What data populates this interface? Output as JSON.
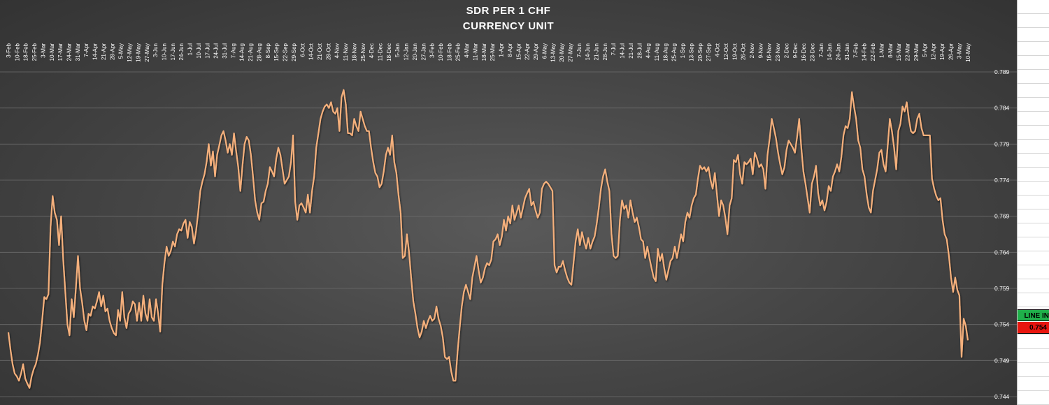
{
  "chart_data": {
    "type": "line",
    "title": "SDR PER 1 CHF",
    "subtitle": "CURRENCY UNIT",
    "x_tick_labels": [
      "3-Feb",
      "10-Feb",
      "18-Feb",
      "25-Feb",
      "3-Mar",
      "10-Mar",
      "17-Mar",
      "24-Mar",
      "31-Mar",
      "7-Apr",
      "14-Apr",
      "21-Apr",
      "28-Apr",
      "5-May",
      "12-May",
      "19-May",
      "27-May",
      "3-Jun",
      "10-Jun",
      "17-Jun",
      "24-Jun",
      "1-Jul",
      "10-Jul",
      "17-Jul",
      "24-Jul",
      "31-Jul",
      "7-Aug",
      "14-Aug",
      "21-Aug",
      "28-Aug",
      "8-Sep",
      "15-Sep",
      "22-Sep",
      "29-Sep",
      "6-Oct",
      "14-Oct",
      "21-Oct",
      "28-Oct",
      "4-Nov",
      "11-Nov",
      "18-Nov",
      "25-Nov",
      "4-Dec",
      "11-Dec",
      "18-Dec",
      "5-Jan",
      "12-Jan",
      "20-Jan",
      "27-Jan",
      "3-Feb",
      "10-Feb",
      "18-Feb",
      "25-Feb",
      "4-Mar",
      "11-Mar",
      "18-Mar",
      "25-Mar",
      "1-Apr",
      "8-Apr",
      "15-Apr",
      "22-Apr",
      "29-Apr",
      "6-May",
      "13-May",
      "20-May",
      "27-May",
      "7-Jun",
      "14-Jun",
      "21-Jun",
      "28-Jun",
      "7-Jul",
      "14-Jul",
      "21-Jul",
      "28-Jul",
      "4-Aug",
      "11-Aug",
      "18-Aug",
      "25-Aug",
      "1-Sep",
      "13-Sep",
      "20-Sep",
      "27-Sep",
      "4-Oct",
      "12-Oct",
      "19-Oct",
      "26-Oct",
      "2-Nov",
      "9-Nov",
      "16-Nov",
      "23-Nov",
      "2-Dec",
      "9-Dec",
      "16-Dec",
      "23-Dec",
      "7-Jan",
      "14-Jan",
      "24-Jan",
      "31-Jan",
      "7-Feb",
      "14-Feb",
      "22-Feb",
      "1-Mar",
      "8-Mar",
      "15-Mar",
      "22-Mar",
      "29-Mar",
      "5-Apr",
      "12-Apr",
      "19-Apr",
      "26-Apr",
      "3-May",
      "10-May"
    ],
    "y_ticks": [
      0.744,
      0.749,
      0.754,
      0.759,
      0.764,
      0.769,
      0.774,
      0.779,
      0.784,
      0.789
    ],
    "ylim": [
      0.744,
      0.79
    ],
    "grid": true,
    "series_color": "#f5b07c",
    "series": [
      {
        "values": [
          0.7529,
          0.7505,
          0.7485,
          0.7472,
          0.7468,
          0.7462,
          0.7472,
          0.7485,
          0.7465,
          0.7458,
          0.7452,
          0.7468,
          0.7478,
          0.7485,
          0.7498,
          0.7515,
          0.7545,
          0.7578,
          0.7575,
          0.7582,
          0.7675,
          0.7718,
          0.7695,
          0.7685,
          0.765,
          0.769,
          0.763,
          0.7585,
          0.754,
          0.7525,
          0.7575,
          0.755,
          0.759,
          0.7635,
          0.759,
          0.757,
          0.7545,
          0.7532,
          0.7555,
          0.7552,
          0.7565,
          0.7562,
          0.7572,
          0.7585,
          0.7565,
          0.758,
          0.7558,
          0.7562,
          0.7545,
          0.7535,
          0.7528,
          0.7525,
          0.756,
          0.7545,
          0.7585,
          0.755,
          0.7535,
          0.7555,
          0.756,
          0.7572,
          0.7568,
          0.7545,
          0.757,
          0.7545,
          0.758,
          0.7555,
          0.7545,
          0.7575,
          0.755,
          0.7545,
          0.7575,
          0.7555,
          0.753,
          0.7595,
          0.7625,
          0.7648,
          0.7635,
          0.7642,
          0.7655,
          0.7648,
          0.7665,
          0.7672,
          0.767,
          0.768,
          0.7685,
          0.766,
          0.7682,
          0.7675,
          0.7652,
          0.767,
          0.7695,
          0.7725,
          0.7738,
          0.7748,
          0.7765,
          0.779,
          0.776,
          0.778,
          0.7745,
          0.7775,
          0.7788,
          0.7802,
          0.7808,
          0.7795,
          0.7778,
          0.779,
          0.7775,
          0.7805,
          0.778,
          0.7758,
          0.7725,
          0.776,
          0.779,
          0.78,
          0.7795,
          0.7775,
          0.7745,
          0.7712,
          0.7695,
          0.7685,
          0.7708,
          0.771,
          0.7725,
          0.7735,
          0.7758,
          0.7752,
          0.7745,
          0.777,
          0.7785,
          0.7775,
          0.7755,
          0.7735,
          0.774,
          0.7745,
          0.7765,
          0.7802,
          0.771,
          0.7685,
          0.7705,
          0.7708,
          0.7702,
          0.7695,
          0.772,
          0.7695,
          0.7725,
          0.7745,
          0.7785,
          0.7805,
          0.7825,
          0.7835,
          0.7842,
          0.7845,
          0.784,
          0.7848,
          0.7835,
          0.7832,
          0.784,
          0.7808,
          0.7855,
          0.7865,
          0.7845,
          0.7805,
          0.7805,
          0.7802,
          0.7825,
          0.7815,
          0.7808,
          0.7835,
          0.7825,
          0.7815,
          0.7808,
          0.7808,
          0.7785,
          0.7765,
          0.775,
          0.7745,
          0.773,
          0.7735,
          0.7752,
          0.7775,
          0.7785,
          0.7775,
          0.7802,
          0.7765,
          0.775,
          0.772,
          0.7695,
          0.7632,
          0.7635,
          0.7665,
          0.764,
          0.7605,
          0.7572,
          0.7555,
          0.7535,
          0.7522,
          0.753,
          0.7545,
          0.7535,
          0.7545,
          0.7552,
          0.7545,
          0.7548,
          0.7565,
          0.7548,
          0.7538,
          0.7522,
          0.7495,
          0.7492,
          0.7495,
          0.7475,
          0.7462,
          0.7462,
          0.7502,
          0.7535,
          0.7565,
          0.7585,
          0.7595,
          0.7585,
          0.7575,
          0.7605,
          0.762,
          0.7635,
          0.7615,
          0.7598,
          0.7605,
          0.7618,
          0.7625,
          0.7622,
          0.763,
          0.7655,
          0.7658,
          0.7665,
          0.765,
          0.7662,
          0.7685,
          0.767,
          0.769,
          0.768,
          0.7705,
          0.7685,
          0.7695,
          0.7705,
          0.7688,
          0.7702,
          0.7715,
          0.7722,
          0.7728,
          0.7705,
          0.771,
          0.7698,
          0.7688,
          0.7695,
          0.7728,
          0.7735,
          0.7738,
          0.7735,
          0.773,
          0.7725,
          0.7622,
          0.7612,
          0.762,
          0.762,
          0.7628,
          0.7615,
          0.7605,
          0.7598,
          0.7595,
          0.7625,
          0.7655,
          0.7672,
          0.765,
          0.7668,
          0.7655,
          0.7645,
          0.766,
          0.7645,
          0.7655,
          0.7662,
          0.768,
          0.7702,
          0.7728,
          0.7745,
          0.7755,
          0.7738,
          0.7725,
          0.7665,
          0.7635,
          0.7632,
          0.7635,
          0.7685,
          0.7712,
          0.77,
          0.7705,
          0.7688,
          0.7712,
          0.7695,
          0.7682,
          0.7688,
          0.7675,
          0.7658,
          0.7655,
          0.7632,
          0.7648,
          0.7632,
          0.7618,
          0.7605,
          0.76,
          0.7645,
          0.7628,
          0.7638,
          0.7618,
          0.7602,
          0.7615,
          0.7628,
          0.7632,
          0.7648,
          0.7632,
          0.7648,
          0.7665,
          0.7655,
          0.7682,
          0.7695,
          0.7688,
          0.7705,
          0.7715,
          0.772,
          0.7742,
          0.776,
          0.7755,
          0.7758,
          0.7752,
          0.7758,
          0.774,
          0.7728,
          0.775,
          0.772,
          0.769,
          0.7712,
          0.7705,
          0.7688,
          0.7665,
          0.7705,
          0.7715,
          0.7768,
          0.7765,
          0.7775,
          0.7748,
          0.7735,
          0.7765,
          0.7762,
          0.7765,
          0.777,
          0.7748,
          0.7778,
          0.777,
          0.7758,
          0.7762,
          0.7755,
          0.7728,
          0.7775,
          0.7798,
          0.7825,
          0.7812,
          0.7798,
          0.7778,
          0.7762,
          0.7748,
          0.7758,
          0.7782,
          0.7795,
          0.779,
          0.7785,
          0.7778,
          0.78,
          0.7825,
          0.7785,
          0.7752,
          0.7735,
          0.7715,
          0.7695,
          0.7735,
          0.7745,
          0.776,
          0.7722,
          0.7705,
          0.7712,
          0.7698,
          0.771,
          0.7732,
          0.7725,
          0.7745,
          0.7752,
          0.7762,
          0.7752,
          0.7772,
          0.7802,
          0.7815,
          0.7812,
          0.7825,
          0.7862,
          0.7842,
          0.7825,
          0.7795,
          0.7785,
          0.7755,
          0.7745,
          0.772,
          0.7702,
          0.7695,
          0.7725,
          0.774,
          0.7755,
          0.7778,
          0.7782,
          0.7762,
          0.7752,
          0.7788,
          0.7825,
          0.7808,
          0.7785,
          0.7755,
          0.7808,
          0.7818,
          0.7842,
          0.7835,
          0.7848,
          0.7825,
          0.7808,
          0.7805,
          0.7808,
          0.7825,
          0.7832,
          0.7812,
          0.7802,
          0.7802,
          0.7802,
          0.7802,
          0.7742,
          0.7728,
          0.7718,
          0.7712,
          0.7715,
          0.7685,
          0.7665,
          0.7658,
          0.7635,
          0.7605,
          0.7585,
          0.7605,
          0.7588,
          0.758,
          0.7495,
          0.7548,
          0.7538,
          0.7518
        ]
      }
    ],
    "marker": {
      "label": "LINE IN",
      "value": "0.754",
      "label_color": "#1fb04a",
      "value_color": "#e8150e"
    }
  }
}
